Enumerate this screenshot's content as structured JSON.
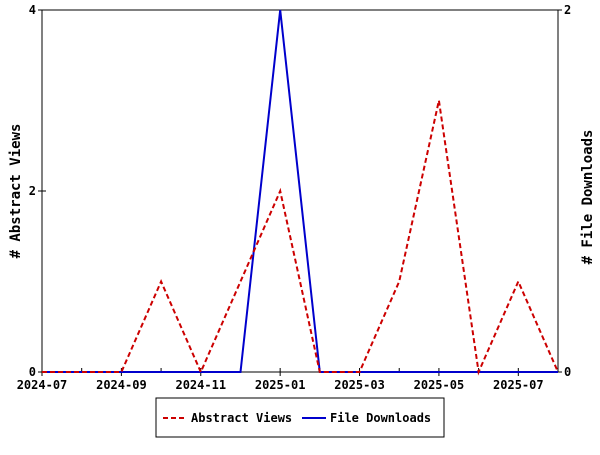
{
  "chart_data": {
    "type": "line",
    "x": [
      "2024-07",
      "2024-08",
      "2024-09",
      "2024-10",
      "2024-11",
      "2024-12",
      "2025-01",
      "2025-02",
      "2025-03",
      "2025-04",
      "2025-05",
      "2025-06",
      "2025-07",
      "2025-08"
    ],
    "x_tick_labels": [
      "2024-07",
      "2024-09",
      "2024-11",
      "2025-01",
      "2025-03",
      "2025-05",
      "2025-07"
    ],
    "xlim": [
      "2024-07",
      "2025-08"
    ],
    "series": [
      {
        "name": "Abstract Views",
        "axis": "left",
        "values": [
          0,
          0,
          0,
          1,
          0,
          1,
          2,
          0,
          0,
          1,
          3,
          0,
          1,
          0
        ],
        "color": "#cc0000",
        "style": "dashed"
      },
      {
        "name": "File Downloads",
        "axis": "right",
        "values": [
          0,
          0,
          0,
          0,
          0,
          0,
          2,
          0,
          0,
          0,
          0,
          0,
          0,
          0
        ],
        "color": "#0000cc",
        "style": "solid"
      }
    ],
    "ylabel_left": "# Abstract Views",
    "ylabel_right": "# File Downloads",
    "ylim_left": [
      0,
      4
    ],
    "yticks_left": [
      0,
      2,
      4
    ],
    "ylim_right": [
      0,
      2
    ],
    "yticks_right": [
      0,
      2
    ],
    "grid": false,
    "legend_position": "bottom-center"
  }
}
